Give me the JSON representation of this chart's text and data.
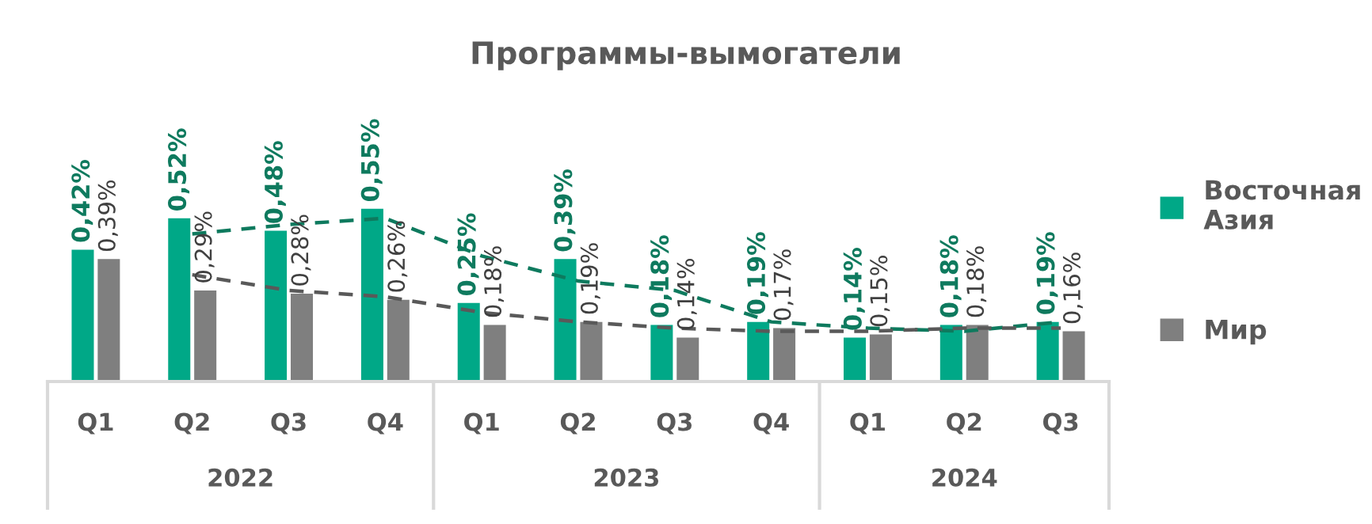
{
  "chart_data": {
    "type": "bar",
    "title": "Программы-вымогатели",
    "categories": [
      "Q1",
      "Q2",
      "Q3",
      "Q4",
      "Q1",
      "Q2",
      "Q3",
      "Q4",
      "Q1",
      "Q2",
      "Q3"
    ],
    "series": [
      {
        "name": "Восточная Азия",
        "color": "#00a887",
        "values": [
          0.42,
          0.52,
          0.48,
          0.55,
          0.25,
          0.39,
          0.18,
          0.19,
          0.14,
          0.18,
          0.19
        ],
        "value_labels": [
          "0,42%",
          "0,52%",
          "0,48%",
          "0,55%",
          "0,25%",
          "0,39%",
          "0,18%",
          "0,19%",
          "0,14%",
          "0,18%",
          "0,19%"
        ]
      },
      {
        "name": "Мир",
        "color": "#7f7f7f",
        "values": [
          0.39,
          0.29,
          0.28,
          0.26,
          0.18,
          0.19,
          0.14,
          0.17,
          0.15,
          0.18,
          0.16
        ],
        "value_labels": [
          "0,39%",
          "0,29%",
          "0,28%",
          "0,26%",
          "0,18%",
          "0,19%",
          "0,14%",
          "0,17%",
          "0,15%",
          "0,18%",
          "0,16%"
        ]
      },
      {
        "type": "line",
        "color": "#0e7a5e",
        "line_style": "dashed",
        "values": [
          null,
          0.47,
          0.5,
          0.52,
          0.4,
          0.32,
          0.29,
          0.19,
          0.17,
          0.16,
          0.19
        ]
      },
      {
        "type": "line",
        "color": "#595959",
        "line_style": "dashed",
        "values": [
          null,
          0.34,
          0.29,
          0.27,
          0.22,
          0.19,
          0.17,
          0.16,
          0.16,
          0.17,
          0.17
        ]
      }
    ],
    "annotations": [
      "2022",
      "2023",
      "2024"
    ],
    "legend": "right",
    "grid": false
  }
}
